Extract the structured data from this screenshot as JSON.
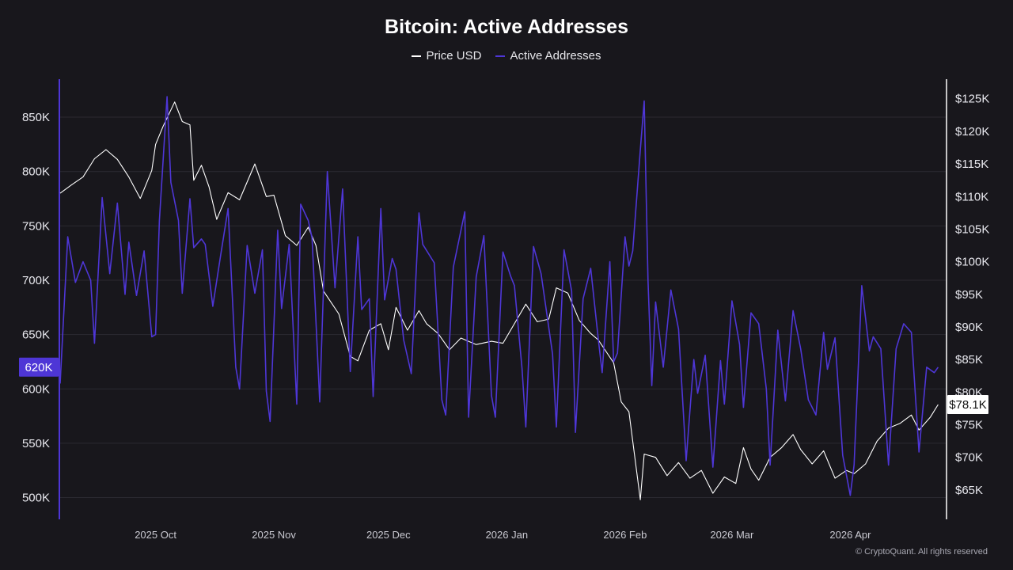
{
  "chart_data": {
    "type": "line",
    "title": "Bitcoin: Active Addresses",
    "legend_position": "top-center",
    "grid": true,
    "x_range": [
      "2025-09-06",
      "2026-04-26"
    ],
    "x_ticks": [
      {
        "label": "2025 Oct",
        "date": "2025-10-01"
      },
      {
        "label": "2025 Nov",
        "date": "2025-11-01"
      },
      {
        "label": "2025 Dec",
        "date": "2025-12-01"
      },
      {
        "label": "2026 Jan",
        "date": "2026-01-01"
      },
      {
        "label": "2026 Feb",
        "date": "2026-02-01"
      },
      {
        "label": "2026 Mar",
        "date": "2026-03-01"
      },
      {
        "label": "2026 Apr",
        "date": "2026-04-01"
      }
    ],
    "y_left": {
      "label": "Active Addresses",
      "range": [
        480000,
        885000
      ],
      "ticks": [
        {
          "label": "850K",
          "value": 850000
        },
        {
          "label": "800K",
          "value": 800000
        },
        {
          "label": "750K",
          "value": 750000
        },
        {
          "label": "700K",
          "value": 700000
        },
        {
          "label": "650K",
          "value": 650000
        },
        {
          "label": "600K",
          "value": 600000
        },
        {
          "label": "550K",
          "value": 550000
        },
        {
          "label": "500K",
          "value": 500000
        }
      ],
      "current_label": "620K",
      "current_value": 620000
    },
    "y_right": {
      "label": "Price USD",
      "range": [
        60500,
        128000
      ],
      "ticks": [
        {
          "label": "$125K",
          "value": 125000
        },
        {
          "label": "$120K",
          "value": 120000
        },
        {
          "label": "$115K",
          "value": 115000
        },
        {
          "label": "$110K",
          "value": 110000
        },
        {
          "label": "$105K",
          "value": 105000
        },
        {
          "label": "$100K",
          "value": 100000
        },
        {
          "label": "$95K",
          "value": 95000
        },
        {
          "label": "$90K",
          "value": 90000
        },
        {
          "label": "$85K",
          "value": 85000
        },
        {
          "label": "$80K",
          "value": 80000
        },
        {
          "label": "$75K",
          "value": 75000
        },
        {
          "label": "$70K",
          "value": 70000
        },
        {
          "label": "$65K",
          "value": 65000
        }
      ],
      "current_label": "$78.1K",
      "current_value": 78100
    },
    "series": [
      {
        "name": "Price USD",
        "axis": "right",
        "color": "#ffffff",
        "points": [
          [
            "2025-09-06",
            110500
          ],
          [
            "2025-09-09",
            111800
          ],
          [
            "2025-09-12",
            113000
          ],
          [
            "2025-09-15",
            115800
          ],
          [
            "2025-09-18",
            117200
          ],
          [
            "2025-09-21",
            115700
          ],
          [
            "2025-09-24",
            113000
          ],
          [
            "2025-09-27",
            109700
          ],
          [
            "2025-09-30",
            114000
          ],
          [
            "2025-10-01",
            118000
          ],
          [
            "2025-10-03",
            120800
          ],
          [
            "2025-10-06",
            124500
          ],
          [
            "2025-10-08",
            121500
          ],
          [
            "2025-10-10",
            121000
          ],
          [
            "2025-10-11",
            112500
          ],
          [
            "2025-10-13",
            114800
          ],
          [
            "2025-10-15",
            111500
          ],
          [
            "2025-10-17",
            106500
          ],
          [
            "2025-10-20",
            110600
          ],
          [
            "2025-10-23",
            109500
          ],
          [
            "2025-10-27",
            115000
          ],
          [
            "2025-10-30",
            110000
          ],
          [
            "2025-11-01",
            110200
          ],
          [
            "2025-11-04",
            104000
          ],
          [
            "2025-11-07",
            102500
          ],
          [
            "2025-11-10",
            105300
          ],
          [
            "2025-11-12",
            102500
          ],
          [
            "2025-11-14",
            95500
          ],
          [
            "2025-11-18",
            92000
          ],
          [
            "2025-11-21",
            85500
          ],
          [
            "2025-11-23",
            84800
          ],
          [
            "2025-11-26",
            89500
          ],
          [
            "2025-11-29",
            90500
          ],
          [
            "2025-12-01",
            86500
          ],
          [
            "2025-12-03",
            93000
          ],
          [
            "2025-12-06",
            89500
          ],
          [
            "2025-12-09",
            92500
          ],
          [
            "2025-12-11",
            90500
          ],
          [
            "2025-12-14",
            89000
          ],
          [
            "2025-12-17",
            86500
          ],
          [
            "2025-12-20",
            88300
          ],
          [
            "2025-12-24",
            87300
          ],
          [
            "2025-12-28",
            87800
          ],
          [
            "2025-12-31",
            87500
          ],
          [
            "2026-01-03",
            90500
          ],
          [
            "2026-01-06",
            93500
          ],
          [
            "2026-01-09",
            90800
          ],
          [
            "2026-01-12",
            91200
          ],
          [
            "2026-01-14",
            96000
          ],
          [
            "2026-01-17",
            95200
          ],
          [
            "2026-01-20",
            91000
          ],
          [
            "2026-01-23",
            89000
          ],
          [
            "2026-01-25",
            88000
          ],
          [
            "2026-01-29",
            84500
          ],
          [
            "2026-01-31",
            78500
          ],
          [
            "2026-02-02",
            77000
          ],
          [
            "2026-02-05",
            63500
          ],
          [
            "2026-02-06",
            70500
          ],
          [
            "2026-02-09",
            70000
          ],
          [
            "2026-02-12",
            67200
          ],
          [
            "2026-02-15",
            69200
          ],
          [
            "2026-02-18",
            66800
          ],
          [
            "2026-02-21",
            68000
          ],
          [
            "2026-02-24",
            64500
          ],
          [
            "2026-02-27",
            67000
          ],
          [
            "2026-03-02",
            66000
          ],
          [
            "2026-03-04",
            71500
          ],
          [
            "2026-03-06",
            68200
          ],
          [
            "2026-03-08",
            66500
          ],
          [
            "2026-03-11",
            70000
          ],
          [
            "2026-03-14",
            71500
          ],
          [
            "2026-03-17",
            73500
          ],
          [
            "2026-03-19",
            71200
          ],
          [
            "2026-03-22",
            69000
          ],
          [
            "2026-03-25",
            71000
          ],
          [
            "2026-03-28",
            66800
          ],
          [
            "2026-03-31",
            68000
          ],
          [
            "2026-04-02",
            67500
          ],
          [
            "2026-04-05",
            69000
          ],
          [
            "2026-04-08",
            72500
          ],
          [
            "2026-04-11",
            74500
          ],
          [
            "2026-04-14",
            75200
          ],
          [
            "2026-04-17",
            76500
          ],
          [
            "2026-04-19",
            74200
          ],
          [
            "2026-04-22",
            76200
          ],
          [
            "2026-04-24",
            78100
          ]
        ]
      },
      {
        "name": "Active Addresses",
        "axis": "left",
        "color": "#4e36d6",
        "points": [
          [
            "2025-09-06",
            605000
          ],
          [
            "2025-09-08",
            740000
          ],
          [
            "2025-09-10",
            698000
          ],
          [
            "2025-09-12",
            717000
          ],
          [
            "2025-09-14",
            700000
          ],
          [
            "2025-09-15",
            642000
          ],
          [
            "2025-09-17",
            776000
          ],
          [
            "2025-09-19",
            706000
          ],
          [
            "2025-09-21",
            771000
          ],
          [
            "2025-09-23",
            687000
          ],
          [
            "2025-09-24",
            735000
          ],
          [
            "2025-09-26",
            686000
          ],
          [
            "2025-09-28",
            727000
          ],
          [
            "2025-09-30",
            648000
          ],
          [
            "2025-10-01",
            650000
          ],
          [
            "2025-10-02",
            755000
          ],
          [
            "2025-10-04",
            869000
          ],
          [
            "2025-10-05",
            790000
          ],
          [
            "2025-10-07",
            755000
          ],
          [
            "2025-10-08",
            688000
          ],
          [
            "2025-10-10",
            775000
          ],
          [
            "2025-10-11",
            730000
          ],
          [
            "2025-10-13",
            738000
          ],
          [
            "2025-10-14",
            733000
          ],
          [
            "2025-10-16",
            676000
          ],
          [
            "2025-10-18",
            722000
          ],
          [
            "2025-10-20",
            766000
          ],
          [
            "2025-10-22",
            620000
          ],
          [
            "2025-10-23",
            600000
          ],
          [
            "2025-10-25",
            732000
          ],
          [
            "2025-10-27",
            688000
          ],
          [
            "2025-10-29",
            728000
          ],
          [
            "2025-10-30",
            598000
          ],
          [
            "2025-10-31",
            570000
          ],
          [
            "2025-11-02",
            746000
          ],
          [
            "2025-11-03",
            674000
          ],
          [
            "2025-11-05",
            733000
          ],
          [
            "2025-11-07",
            586000
          ],
          [
            "2025-11-08",
            770000
          ],
          [
            "2025-11-10",
            755000
          ],
          [
            "2025-11-11",
            739000
          ],
          [
            "2025-11-13",
            588000
          ],
          [
            "2025-11-15",
            800000
          ],
          [
            "2025-11-17",
            693000
          ],
          [
            "2025-11-19",
            784000
          ],
          [
            "2025-11-21",
            616000
          ],
          [
            "2025-11-23",
            740000
          ],
          [
            "2025-11-24",
            673000
          ],
          [
            "2025-11-26",
            683000
          ],
          [
            "2025-11-27",
            593000
          ],
          [
            "2025-11-29",
            766000
          ],
          [
            "2025-11-30",
            682000
          ],
          [
            "2025-12-02",
            720000
          ],
          [
            "2025-12-03",
            710000
          ],
          [
            "2025-12-05",
            645000
          ],
          [
            "2025-12-07",
            614000
          ],
          [
            "2025-12-09",
            762000
          ],
          [
            "2025-12-10",
            733000
          ],
          [
            "2025-12-13",
            716000
          ],
          [
            "2025-12-15",
            590000
          ],
          [
            "2025-12-16",
            576000
          ],
          [
            "2025-12-18",
            712000
          ],
          [
            "2025-12-21",
            763000
          ],
          [
            "2025-12-22",
            574000
          ],
          [
            "2025-12-24",
            703000
          ],
          [
            "2025-12-26",
            741000
          ],
          [
            "2025-12-28",
            594000
          ],
          [
            "2025-12-29",
            574000
          ],
          [
            "2025-12-31",
            726000
          ],
          [
            "2026-01-02",
            704000
          ],
          [
            "2026-01-03",
            695000
          ],
          [
            "2026-01-05",
            619000
          ],
          [
            "2026-01-06",
            565000
          ],
          [
            "2026-01-08",
            731000
          ],
          [
            "2026-01-10",
            706000
          ],
          [
            "2026-01-13",
            632000
          ],
          [
            "2026-01-14",
            565000
          ],
          [
            "2026-01-16",
            728000
          ],
          [
            "2026-01-18",
            690000
          ],
          [
            "2026-01-19",
            560000
          ],
          [
            "2026-01-21",
            683000
          ],
          [
            "2026-01-23",
            711000
          ],
          [
            "2026-01-25",
            645000
          ],
          [
            "2026-01-26",
            615000
          ],
          [
            "2026-01-28",
            717000
          ],
          [
            "2026-01-29",
            625000
          ],
          [
            "2026-01-30",
            633000
          ],
          [
            "2026-02-01",
            740000
          ],
          [
            "2026-02-02",
            713000
          ],
          [
            "2026-02-03",
            727000
          ],
          [
            "2026-02-05",
            820000
          ],
          [
            "2026-02-06",
            865000
          ],
          [
            "2026-02-07",
            700000
          ],
          [
            "2026-02-08",
            603000
          ],
          [
            "2026-02-09",
            680000
          ],
          [
            "2026-02-11",
            620000
          ],
          [
            "2026-02-13",
            691000
          ],
          [
            "2026-02-15",
            655000
          ],
          [
            "2026-02-17",
            534000
          ],
          [
            "2026-02-19",
            627000
          ],
          [
            "2026-02-20",
            596000
          ],
          [
            "2026-02-22",
            631000
          ],
          [
            "2026-02-24",
            528000
          ],
          [
            "2026-02-26",
            626000
          ],
          [
            "2026-02-27",
            586000
          ],
          [
            "2026-03-01",
            681000
          ],
          [
            "2026-03-03",
            641000
          ],
          [
            "2026-03-04",
            583000
          ],
          [
            "2026-03-06",
            670000
          ],
          [
            "2026-03-08",
            660000
          ],
          [
            "2026-03-10",
            600000
          ],
          [
            "2026-03-11",
            530000
          ],
          [
            "2026-03-13",
            654000
          ],
          [
            "2026-03-15",
            589000
          ],
          [
            "2026-03-17",
            672000
          ],
          [
            "2026-03-19",
            637000
          ],
          [
            "2026-03-21",
            590000
          ],
          [
            "2026-03-23",
            576000
          ],
          [
            "2026-03-25",
            652000
          ],
          [
            "2026-03-26",
            618000
          ],
          [
            "2026-03-28",
            647000
          ],
          [
            "2026-03-30",
            539000
          ],
          [
            "2026-04-01",
            502000
          ],
          [
            "2026-04-02",
            530000
          ],
          [
            "2026-04-04",
            695000
          ],
          [
            "2026-04-06",
            635000
          ],
          [
            "2026-04-07",
            648000
          ],
          [
            "2026-04-09",
            637000
          ],
          [
            "2026-04-11",
            530000
          ],
          [
            "2026-04-13",
            637000
          ],
          [
            "2026-04-15",
            660000
          ],
          [
            "2026-04-17",
            652000
          ],
          [
            "2026-04-19",
            542000
          ],
          [
            "2026-04-21",
            620000
          ],
          [
            "2026-04-23",
            615000
          ],
          [
            "2026-04-24",
            620000
          ]
        ]
      }
    ]
  },
  "footer": {
    "copyright": "© CryptoQuant. All rights reserved"
  },
  "colors": {
    "background": "#18171c",
    "price": "#ffffff",
    "active_addresses": "#4e36d6",
    "grid": "#2b2a31",
    "axis_text": "#e8e8ee"
  }
}
